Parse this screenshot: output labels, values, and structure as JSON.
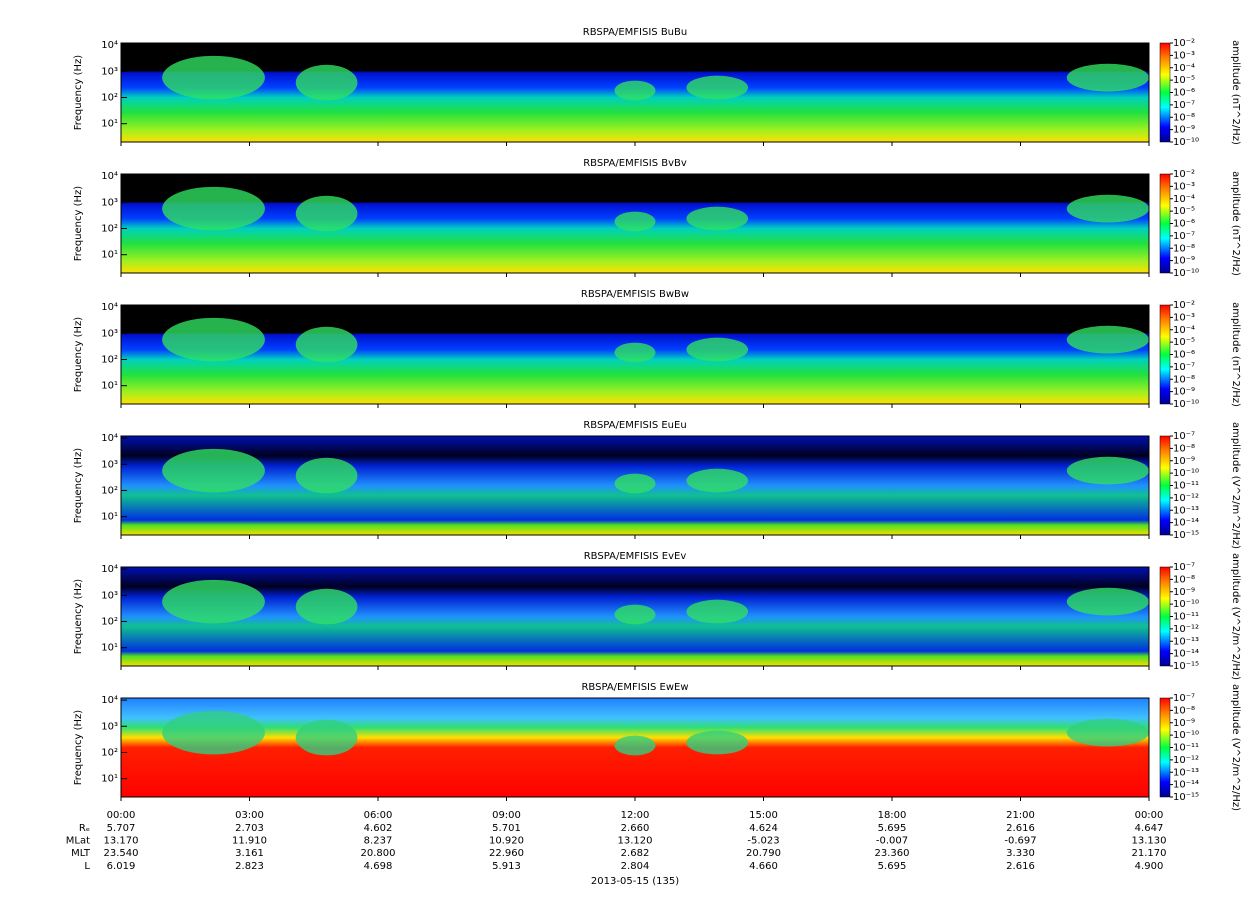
{
  "chart_data": [
    {
      "type": "spectrogram",
      "title": "RBSPA/EMFISIS  BuBu",
      "ylabel": "Frequency (Hz)",
      "ylog": true,
      "ylim": [
        2,
        12000
      ],
      "yticks": [
        {
          "value": 10,
          "label": "10¹"
        },
        {
          "value": 100,
          "label": "10²"
        },
        {
          "value": 1000,
          "label": "10³"
        },
        {
          "value": 10000,
          "label": "10⁴"
        }
      ],
      "zlabel": "amplitude (nT^2/Hz)",
      "zlim": [
        1e-10,
        0.01
      ],
      "zticks": [
        {
          "value": 1e-10,
          "label": "10⁻¹⁰"
        },
        {
          "value": 1e-09,
          "label": "10⁻⁹"
        },
        {
          "value": 1e-08,
          "label": "10⁻⁸"
        },
        {
          "value": 1e-07,
          "label": "10⁻⁷"
        },
        {
          "value": 1e-06,
          "label": "10⁻⁶"
        },
        {
          "value": 1e-05,
          "label": "10⁻⁵"
        },
        {
          "value": 0.0001,
          "label": "10⁻⁴"
        },
        {
          "value": 0.001,
          "label": "10⁻³"
        },
        {
          "value": 0.01,
          "label": "10⁻²"
        }
      ]
    },
    {
      "type": "spectrogram",
      "title": "RBSPA/EMFISIS  BvBv",
      "ylabel": "Frequency (Hz)",
      "ylog": true,
      "ylim": [
        2,
        12000
      ],
      "yticks": [
        {
          "value": 10,
          "label": "10¹"
        },
        {
          "value": 100,
          "label": "10²"
        },
        {
          "value": 1000,
          "label": "10³"
        },
        {
          "value": 10000,
          "label": "10⁴"
        }
      ],
      "zlabel": "amplitude (nT^2/Hz)",
      "zlim": [
        1e-10,
        0.01
      ],
      "zticks": [
        {
          "value": 1e-10,
          "label": "10⁻¹⁰"
        },
        {
          "value": 1e-09,
          "label": "10⁻⁹"
        },
        {
          "value": 1e-08,
          "label": "10⁻⁸"
        },
        {
          "value": 1e-07,
          "label": "10⁻⁷"
        },
        {
          "value": 1e-06,
          "label": "10⁻⁶"
        },
        {
          "value": 1e-05,
          "label": "10⁻⁵"
        },
        {
          "value": 0.0001,
          "label": "10⁻⁴"
        },
        {
          "value": 0.001,
          "label": "10⁻³"
        },
        {
          "value": 0.01,
          "label": "10⁻²"
        }
      ]
    },
    {
      "type": "spectrogram",
      "title": "RBSPA/EMFISIS  BwBw",
      "ylabel": "Frequency (Hz)",
      "ylog": true,
      "ylim": [
        2,
        12000
      ],
      "yticks": [
        {
          "value": 10,
          "label": "10¹"
        },
        {
          "value": 100,
          "label": "10²"
        },
        {
          "value": 1000,
          "label": "10³"
        },
        {
          "value": 10000,
          "label": "10⁴"
        }
      ],
      "zlabel": "amplitude (nT^2/Hz)",
      "zlim": [
        1e-10,
        0.01
      ],
      "zticks": [
        {
          "value": 1e-10,
          "label": "10⁻¹⁰"
        },
        {
          "value": 1e-09,
          "label": "10⁻⁹"
        },
        {
          "value": 1e-08,
          "label": "10⁻⁸"
        },
        {
          "value": 1e-07,
          "label": "10⁻⁷"
        },
        {
          "value": 1e-06,
          "label": "10⁻⁶"
        },
        {
          "value": 1e-05,
          "label": "10⁻⁵"
        },
        {
          "value": 0.0001,
          "label": "10⁻⁴"
        },
        {
          "value": 0.001,
          "label": "10⁻³"
        },
        {
          "value": 0.01,
          "label": "10⁻²"
        }
      ]
    },
    {
      "type": "spectrogram",
      "title": "RBSPA/EMFISIS  EuEu",
      "ylabel": "Frequency (Hz)",
      "ylog": true,
      "ylim": [
        2,
        12000
      ],
      "yticks": [
        {
          "value": 10,
          "label": "10¹"
        },
        {
          "value": 100,
          "label": "10²"
        },
        {
          "value": 1000,
          "label": "10³"
        },
        {
          "value": 10000,
          "label": "10⁴"
        }
      ],
      "zlabel": "amplitude (V^2/m^2/Hz)",
      "zlim": [
        1e-15,
        1e-07
      ],
      "zticks": [
        {
          "value": 1e-15,
          "label": "10⁻¹⁵"
        },
        {
          "value": 1e-14,
          "label": "10⁻¹⁴"
        },
        {
          "value": 1e-13,
          "label": "10⁻¹³"
        },
        {
          "value": 1e-12,
          "label": "10⁻¹²"
        },
        {
          "value": 1e-11,
          "label": "10⁻¹¹"
        },
        {
          "value": 1e-10,
          "label": "10⁻¹⁰"
        },
        {
          "value": 1e-09,
          "label": "10⁻⁹"
        },
        {
          "value": 1e-08,
          "label": "10⁻⁸"
        },
        {
          "value": 1e-07,
          "label": "10⁻⁷"
        }
      ]
    },
    {
      "type": "spectrogram",
      "title": "RBSPA/EMFISIS  EvEv",
      "ylabel": "Frequency (Hz)",
      "ylog": true,
      "ylim": [
        2,
        12000
      ],
      "yticks": [
        {
          "value": 10,
          "label": "10¹"
        },
        {
          "value": 100,
          "label": "10²"
        },
        {
          "value": 1000,
          "label": "10³"
        },
        {
          "value": 10000,
          "label": "10⁴"
        }
      ],
      "zlabel": "amplitude (V^2/m^2/Hz)",
      "zlim": [
        1e-15,
        1e-07
      ],
      "zticks": [
        {
          "value": 1e-15,
          "label": "10⁻¹⁵"
        },
        {
          "value": 1e-14,
          "label": "10⁻¹⁴"
        },
        {
          "value": 1e-13,
          "label": "10⁻¹³"
        },
        {
          "value": 1e-12,
          "label": "10⁻¹²"
        },
        {
          "value": 1e-11,
          "label": "10⁻¹¹"
        },
        {
          "value": 1e-10,
          "label": "10⁻¹⁰"
        },
        {
          "value": 1e-09,
          "label": "10⁻⁹"
        },
        {
          "value": 1e-08,
          "label": "10⁻⁸"
        },
        {
          "value": 1e-07,
          "label": "10⁻⁷"
        }
      ]
    },
    {
      "type": "spectrogram",
      "title": "RBSPA/EMFISIS  EwEw",
      "ylabel": "Frequency (Hz)",
      "ylog": true,
      "ylim": [
        2,
        12000
      ],
      "yticks": [
        {
          "value": 10,
          "label": "10¹"
        },
        {
          "value": 100,
          "label": "10²"
        },
        {
          "value": 1000,
          "label": "10³"
        },
        {
          "value": 10000,
          "label": "10⁴"
        }
      ],
      "zlabel": "amplitude (V^2/m^2/Hz)",
      "zlim": [
        1e-15,
        1e-07
      ],
      "zticks": [
        {
          "value": 1e-15,
          "label": "10⁻¹⁵"
        },
        {
          "value": 1e-14,
          "label": "10⁻¹⁴"
        },
        {
          "value": 1e-13,
          "label": "10⁻¹³"
        },
        {
          "value": 1e-12,
          "label": "10⁻¹²"
        },
        {
          "value": 1e-11,
          "label": "10⁻¹¹"
        },
        {
          "value": 1e-10,
          "label": "10⁻¹⁰"
        },
        {
          "value": 1e-09,
          "label": "10⁻⁹"
        },
        {
          "value": 1e-08,
          "label": "10⁻⁸"
        },
        {
          "value": 1e-07,
          "label": "10⁻⁷"
        }
      ]
    }
  ],
  "x_axis": {
    "xlim": [
      0,
      24
    ],
    "xticks": [
      {
        "value": 0,
        "label": "00:00"
      },
      {
        "value": 3,
        "label": "03:00"
      },
      {
        "value": 6,
        "label": "06:00"
      },
      {
        "value": 9,
        "label": "09:00"
      },
      {
        "value": 12,
        "label": "12:00"
      },
      {
        "value": 15,
        "label": "15:00"
      },
      {
        "value": 18,
        "label": "18:00"
      },
      {
        "value": 21,
        "label": "21:00"
      },
      {
        "value": 24,
        "label": "00:00"
      }
    ],
    "xlabel": "2013-05-15 (135)"
  },
  "ephemeris": [
    {
      "label": "Rₑ",
      "values": [
        "5.707",
        "2.703",
        "4.602",
        "5.701",
        "2.660",
        "4.624",
        "5.695",
        "2.616",
        "4.647"
      ]
    },
    {
      "label": "MLat",
      "values": [
        "13.170",
        "11.910",
        "8.237",
        "10.920",
        "13.120",
        "-5.023",
        "-0.007",
        "-0.697",
        "13.130"
      ]
    },
    {
      "label": "MLT",
      "values": [
        "23.540",
        "3.161",
        "20.800",
        "22.960",
        "2.682",
        "20.790",
        "23.360",
        "3.330",
        "21.170"
      ]
    },
    {
      "label": "L",
      "values": [
        "6.019",
        "2.823",
        "4.698",
        "5.913",
        "2.804",
        "4.660",
        "5.695",
        "2.616",
        "4.900"
      ]
    }
  ]
}
